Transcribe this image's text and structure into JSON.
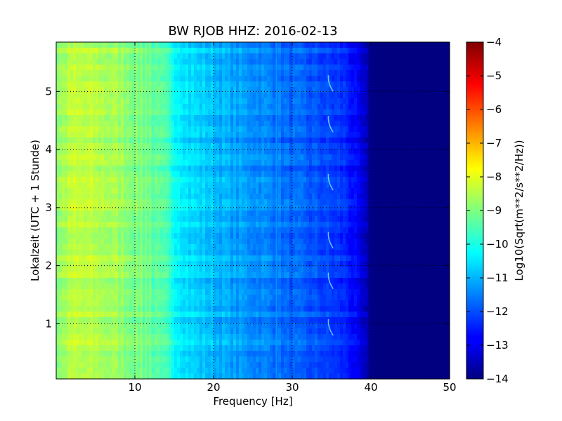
{
  "chart_data": {
    "type": "heatmap",
    "title": "BW RJOB HHZ: 2016-02-13",
    "xlabel": "Frequency [Hz]",
    "ylabel": "Lokalzeit (UTC + 1 Stunde)",
    "xlim": [
      0,
      50
    ],
    "ylim": [
      5.85,
      0.05
    ],
    "xticks": [
      10,
      20,
      30,
      40,
      50
    ],
    "yticks": [
      1,
      2,
      3,
      4,
      5
    ],
    "grid": true,
    "colormap": "jet",
    "colorbar": {
      "label": "Log10(Sqrt(m**2/s**2/Hz))",
      "range": [
        -14,
        -4
      ],
      "ticks": [
        -14,
        -13,
        -12,
        -11,
        -10,
        -9,
        -8,
        -7,
        -6,
        -5,
        -4
      ]
    },
    "profile": {
      "frequencies": [
        0,
        2,
        5,
        8,
        10,
        12,
        14,
        15,
        17,
        20,
        23,
        26,
        28,
        30,
        33,
        35,
        37,
        38,
        39,
        40,
        41,
        45,
        50
      ],
      "values": [
        -8.9,
        -8.4,
        -8.5,
        -8.7,
        -9.0,
        -9.3,
        -9.6,
        -10.1,
        -10.6,
        -10.9,
        -11.2,
        -11.4,
        -11.6,
        -11.8,
        -12.0,
        -12.2,
        -12.4,
        -12.8,
        -13.3,
        -13.9,
        -14.0,
        -14.0,
        -14.0
      ]
    }
  }
}
